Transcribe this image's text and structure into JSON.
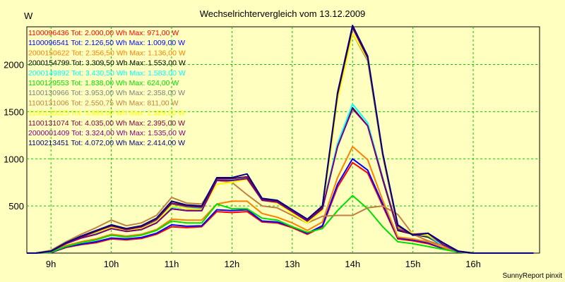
{
  "chart_data": {
    "type": "line",
    "title": "Wechselrichtervergleich vom 13.12.2009",
    "ylabel": "W",
    "footer": "SunnyReport pinxit",
    "xlim": [
      8.6,
      17.1
    ],
    "ylim": [
      0,
      2400
    ],
    "x_ticks": [
      {
        "v": 9,
        "label": "9h"
      },
      {
        "v": 10,
        "label": "10h"
      },
      {
        "v": 11,
        "label": "11h"
      },
      {
        "v": 12,
        "label": "12h"
      },
      {
        "v": 13,
        "label": "13h"
      },
      {
        "v": 14,
        "label": "14h"
      },
      {
        "v": 15,
        "label": "15h"
      },
      {
        "v": 16,
        "label": "16h"
      }
    ],
    "y_ticks": [
      {
        "v": 500,
        "label": "500"
      },
      {
        "v": 1000,
        "label": "1000"
      },
      {
        "v": 1500,
        "label": "1500"
      },
      {
        "v": 2000,
        "label": "2000"
      }
    ],
    "grid": true,
    "grid_color": "#00cc00",
    "x": [
      8.6,
      8.75,
      9.0,
      9.25,
      9.5,
      9.75,
      10.0,
      10.25,
      10.5,
      10.75,
      11.0,
      11.25,
      11.5,
      11.75,
      12.0,
      12.25,
      12.5,
      12.75,
      13.0,
      13.25,
      13.5,
      13.75,
      14.0,
      14.25,
      14.5,
      14.75,
      15.0,
      15.25,
      15.5,
      15.75,
      16.0,
      16.25,
      16.5,
      16.75,
      17.0
    ],
    "series": [
      {
        "name": "1100096436",
        "legend": "1100096436 Tot: 2.000,00 Wh Max: 971,00 W",
        "color": "#ff0000",
        "values": [
          0,
          0,
          5,
          60,
          90,
          110,
          150,
          140,
          155,
          200,
          280,
          270,
          280,
          440,
          430,
          440,
          330,
          320,
          270,
          200,
          280,
          700,
          960,
          850,
          500,
          150,
          130,
          100,
          50,
          10,
          0,
          0,
          0,
          0,
          0
        ]
      },
      {
        "name": "1100096541",
        "legend": "1100096541 Tot: 2.126,50 Wh Max: 1.009,00 W",
        "color": "#0000ff",
        "values": [
          0,
          0,
          5,
          65,
          95,
          120,
          160,
          150,
          165,
          210,
          300,
          285,
          290,
          460,
          450,
          460,
          340,
          330,
          280,
          210,
          290,
          730,
          1000,
          880,
          520,
          160,
          140,
          110,
          50,
          10,
          0,
          0,
          0,
          0,
          0
        ]
      },
      {
        "name": "2000150622",
        "legend": "2000150622 Tot: 2.356,50 Wh Max: 1.136,00 W",
        "color": "#ff8000",
        "values": [
          0,
          0,
          10,
          80,
          120,
          150,
          200,
          180,
          200,
          250,
          360,
          350,
          350,
          520,
          550,
          550,
          420,
          380,
          320,
          240,
          330,
          800,
          1130,
          990,
          560,
          170,
          150,
          120,
          60,
          10,
          0,
          0,
          0,
          0,
          0
        ]
      },
      {
        "name": "2000154799",
        "legend": "2000154799 Tot: 3.309,50 Wh Max: 1.553,00 W",
        "color": "#000000",
        "values": [
          0,
          0,
          20,
          100,
          160,
          200,
          260,
          230,
          250,
          320,
          470,
          450,
          450,
          780,
          770,
          790,
          560,
          540,
          440,
          340,
          470,
          1130,
          1540,
          1350,
          780,
          240,
          200,
          170,
          80,
          15,
          0,
          0,
          0,
          0,
          0
        ]
      },
      {
        "name": "2000149892",
        "legend": "2000149892 Tot: 3.430,50 Wh Max: 1.583,00 W",
        "color": "#00ffff",
        "values": [
          0,
          0,
          20,
          105,
          165,
          210,
          270,
          240,
          265,
          330,
          490,
          470,
          470,
          790,
          780,
          800,
          580,
          560,
          450,
          350,
          480,
          1160,
          1580,
          1380,
          800,
          250,
          210,
          180,
          80,
          15,
          0,
          0,
          0,
          0,
          0
        ]
      },
      {
        "name": "1100129553",
        "legend": "1100129553 Tot: 1.838,00 Wh Max: 624,00 W",
        "color": "#00dd00",
        "values": [
          0,
          0,
          10,
          70,
          110,
          140,
          190,
          170,
          190,
          240,
          340,
          320,
          320,
          520,
          470,
          470,
          370,
          350,
          280,
          220,
          260,
          450,
          610,
          470,
          280,
          120,
          100,
          70,
          40,
          10,
          0,
          0,
          0,
          0,
          0
        ]
      },
      {
        "name": "1100130966",
        "legend": "1100130966 Tot: 3.953,00 Wh Max: 2.358,00 W",
        "color": "#808080",
        "values": [
          0,
          0,
          20,
          100,
          170,
          220,
          280,
          240,
          270,
          350,
          520,
          490,
          480,
          780,
          770,
          790,
          560,
          540,
          440,
          340,
          480,
          1650,
          2330,
          2040,
          1030,
          270,
          200,
          180,
          100,
          20,
          0,
          0,
          0,
          0,
          0
        ]
      },
      {
        "name": "1100131006",
        "legend": "1100131006 Tot: 2.550,75 Wh Max: 811,00 W",
        "color": "#c08040",
        "values": [
          0,
          0,
          30,
          120,
          200,
          270,
          350,
          290,
          320,
          400,
          590,
          530,
          520,
          770,
          750,
          620,
          500,
          480,
          400,
          320,
          390,
          400,
          400,
          480,
          500,
          410,
          200,
          130,
          80,
          20,
          0,
          0,
          0,
          0,
          0
        ]
      },
      {
        "name": "1100130025",
        "legend": "1100130025 Tot: 3.889,00 Wh Max: 2.389,00 W",
        "color": "#ffff00",
        "values": [
          0,
          0,
          20,
          100,
          170,
          220,
          270,
          240,
          260,
          330,
          500,
          470,
          460,
          730,
          750,
          780,
          560,
          530,
          420,
          320,
          450,
          1620,
          2330,
          2060,
          1040,
          280,
          210,
          190,
          100,
          20,
          0,
          0,
          0,
          0,
          0
        ]
      },
      {
        "name": "1100131074",
        "legend": "1100131074 Tot: 4.035,00 Wh Max: 2.395,00 W",
        "color": "#800040",
        "values": [
          0,
          0,
          20,
          105,
          170,
          230,
          290,
          250,
          280,
          360,
          530,
          500,
          490,
          790,
          790,
          810,
          570,
          550,
          450,
          350,
          490,
          1680,
          2390,
          2070,
          1050,
          290,
          190,
          210,
          110,
          20,
          0,
          0,
          0,
          0,
          0
        ]
      },
      {
        "name": "2000001409",
        "legend": "2000001409 Tot: 3.324,00 Wh Max: 1.535,00 W",
        "color": "#800080",
        "values": [
          0,
          0,
          20,
          100,
          160,
          200,
          260,
          230,
          250,
          320,
          470,
          450,
          450,
          770,
          770,
          790,
          560,
          540,
          440,
          340,
          470,
          1130,
          1530,
          1350,
          790,
          250,
          200,
          210,
          90,
          15,
          0,
          0,
          0,
          0,
          0
        ]
      },
      {
        "name": "1100213451",
        "legend": "1100213451 Tot: 4.072,00 Wh Max: 2.414,00 W",
        "color": "#000080",
        "values": [
          0,
          0,
          20,
          110,
          180,
          240,
          300,
          260,
          290,
          370,
          550,
          510,
          500,
          800,
          800,
          840,
          580,
          560,
          460,
          360,
          500,
          1700,
          2414,
          2090,
          1060,
          300,
          190,
          210,
          110,
          20,
          0,
          0,
          0,
          0,
          0
        ]
      }
    ]
  }
}
